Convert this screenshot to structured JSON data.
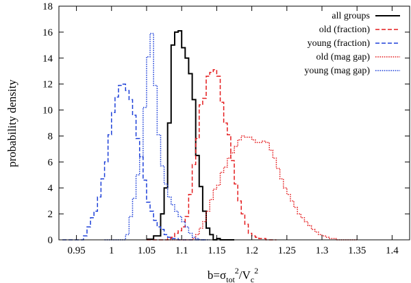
{
  "chart_data": {
    "type": "histogram-step",
    "xlabel": "b=σtot2/Vc2",
    "xlabel_parts": {
      "base": "b=σ",
      "sub1": "tot",
      "sup1": "2",
      "mid": "/V",
      "sub2": "c",
      "sup2": "2"
    },
    "ylabel": "probability density",
    "xlim": [
      0.925,
      1.425
    ],
    "ylim": [
      0,
      18
    ],
    "xticks": [
      0.95,
      1.0,
      1.05,
      1.1,
      1.15,
      1.2,
      1.25,
      1.3,
      1.35,
      1.4
    ],
    "xtick_labels": [
      "0.95",
      "1",
      "1.05",
      "1.1",
      "1.15",
      "1.2",
      "1.25",
      "1.3",
      "1.35",
      "1.4"
    ],
    "yticks": [
      0,
      2,
      4,
      6,
      8,
      10,
      12,
      14,
      16,
      18
    ],
    "ytick_labels": [
      "0",
      "2",
      "4",
      "6",
      "8",
      "10",
      "12",
      "14",
      "16",
      "18"
    ],
    "legend_position": "top-right",
    "series": [
      {
        "name": "all groups",
        "color": "#000000",
        "dash": "solid",
        "x": [
          1.05,
          1.06,
          1.07,
          1.075,
          1.08,
          1.085,
          1.09,
          1.095,
          1.1,
          1.105,
          1.11,
          1.115,
          1.12,
          1.125,
          1.13,
          1.135,
          1.14,
          1.145,
          1.15,
          1.155,
          1.16,
          1.17
        ],
        "y": [
          0.05,
          0.3,
          2.0,
          4.0,
          9.0,
          15.0,
          16.0,
          16.1,
          14.8,
          14.0,
          12.8,
          10.8,
          6.5,
          4.1,
          2.2,
          0.9,
          0.4,
          0.0,
          0.1,
          0.0,
          0.0,
          0.0
        ]
      },
      {
        "name": "old (fraction)",
        "color": "#e41a1c",
        "dash": "dashed",
        "x": [
          1.05,
          1.08,
          1.085,
          1.09,
          1.095,
          1.1,
          1.105,
          1.11,
          1.115,
          1.12,
          1.125,
          1.13,
          1.135,
          1.14,
          1.145,
          1.15,
          1.155,
          1.16,
          1.165,
          1.17,
          1.175,
          1.18,
          1.185,
          1.19,
          1.195,
          1.2,
          1.205,
          1.21,
          1.215,
          1.22,
          1.225,
          1.23
        ],
        "y": [
          0.0,
          0.1,
          0.2,
          0.5,
          0.7,
          1.0,
          1.8,
          3.5,
          5.8,
          7.8,
          10.4,
          10.9,
          12.6,
          12.9,
          13.1,
          12.6,
          10.6,
          9.0,
          8.1,
          6.1,
          4.3,
          3.0,
          2.0,
          1.2,
          0.5,
          0.3,
          0.2,
          0.1,
          0.1,
          0.0,
          0.0,
          0.0
        ]
      },
      {
        "name": "young (fraction)",
        "color": "#1c3fd8",
        "dash": "dashed",
        "x": [
          0.93,
          0.96,
          0.965,
          0.97,
          0.975,
          0.98,
          0.985,
          0.99,
          0.995,
          1.0,
          1.005,
          1.01,
          1.015,
          1.02,
          1.025,
          1.03,
          1.035,
          1.04,
          1.045,
          1.05,
          1.055,
          1.06,
          1.065,
          1.07,
          1.075,
          1.08,
          1.085,
          1.09,
          1.095,
          1.1,
          1.105,
          1.11,
          1.115,
          1.12,
          1.125,
          1.13
        ],
        "y": [
          0.0,
          0.3,
          1.0,
          1.7,
          2.2,
          3.3,
          4.7,
          6.0,
          8.1,
          9.8,
          11.0,
          11.9,
          12.0,
          11.5,
          10.8,
          9.6,
          7.8,
          6.4,
          4.6,
          2.9,
          2.2,
          1.5,
          1.0,
          0.8,
          0.4,
          0.2,
          0.1,
          0.1,
          0.0,
          0.0,
          0.0,
          0.0,
          0.0,
          0.0,
          0.0,
          0.0
        ]
      },
      {
        "name": "old (mag gap)",
        "color": "#e41a1c",
        "dash": "dotted",
        "x": [
          1.08,
          1.115,
          1.12,
          1.125,
          1.13,
          1.135,
          1.14,
          1.145,
          1.15,
          1.155,
          1.16,
          1.165,
          1.17,
          1.175,
          1.18,
          1.185,
          1.19,
          1.195,
          1.2,
          1.205,
          1.21,
          1.215,
          1.22,
          1.225,
          1.23,
          1.235,
          1.24,
          1.245,
          1.25,
          1.255,
          1.26,
          1.265,
          1.27,
          1.275,
          1.28,
          1.285,
          1.29,
          1.295,
          1.3,
          1.305,
          1.31,
          1.315,
          1.32,
          1.325,
          1.33,
          1.335,
          1.34,
          1.345
        ],
        "y": [
          0.0,
          0.1,
          0.4,
          0.9,
          1.4,
          2.2,
          3.1,
          3.9,
          4.2,
          5.2,
          5.6,
          6.3,
          6.7,
          7.2,
          7.7,
          8.0,
          7.9,
          7.9,
          7.7,
          7.5,
          7.5,
          7.6,
          7.5,
          6.9,
          6.3,
          5.5,
          4.7,
          4.0,
          3.5,
          3.0,
          2.5,
          2.0,
          1.7,
          1.4,
          1.1,
          0.8,
          0.6,
          0.4,
          0.3,
          0.2,
          0.1,
          0.1,
          0.0,
          0.0,
          0.0,
          0.0,
          0.0,
          0.0
        ]
      },
      {
        "name": "young (mag gap)",
        "color": "#1c3fd8",
        "dash": "dotted",
        "x": [
          0.99,
          1.02,
          1.025,
          1.03,
          1.035,
          1.04,
          1.045,
          1.05,
          1.055,
          1.06,
          1.065,
          1.07,
          1.075,
          1.08,
          1.085,
          1.09,
          1.095,
          1.1,
          1.105,
          1.11,
          1.115,
          1.12,
          1.125,
          1.13,
          1.135
        ],
        "y": [
          0.0,
          0.4,
          1.8,
          3.2,
          5.0,
          6.4,
          10.2,
          14.1,
          15.9,
          11.9,
          8.1,
          5.7,
          4.3,
          3.3,
          2.7,
          2.2,
          1.8,
          1.4,
          1.0,
          0.5,
          0.2,
          0.1,
          0.0,
          0.0,
          0.0
        ]
      }
    ]
  }
}
